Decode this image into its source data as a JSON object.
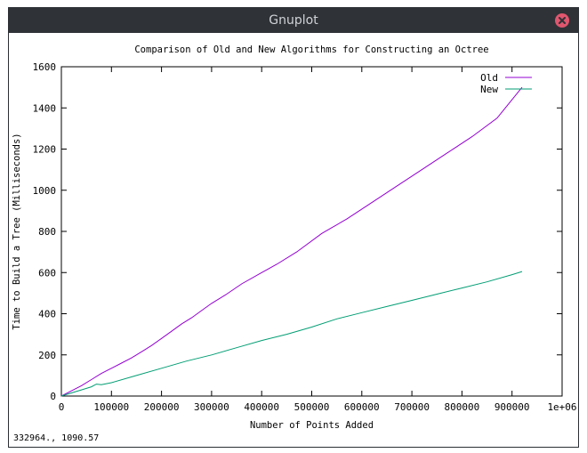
{
  "window": {
    "title": "Gnuplot",
    "close_icon": "close-icon"
  },
  "status": {
    "coords": "332964.,  1090.57"
  },
  "chart_data": {
    "type": "line",
    "title": "Comparison of Old and New Algorithms for Constructing an Octree",
    "xlabel": "Number of Points Added",
    "ylabel": "Time to Build a Tree (Milliseconds)",
    "xlim": [
      0,
      1000000
    ],
    "ylim": [
      0,
      1600
    ],
    "xticks": [
      0,
      100000,
      200000,
      300000,
      400000,
      500000,
      600000,
      700000,
      800000,
      900000,
      1000000
    ],
    "xtick_labels": [
      "0",
      "100000",
      "200000",
      "300000",
      "400000",
      "500000",
      "600000",
      "700000",
      "800000",
      "900000",
      "1e+06"
    ],
    "yticks": [
      0,
      200,
      400,
      600,
      800,
      1000,
      1200,
      1400,
      1600
    ],
    "ytick_labels": [
      "0",
      "200",
      "400",
      "600",
      "800",
      "1000",
      "1200",
      "1400",
      "1600"
    ],
    "grid": false,
    "legend_position": "top-right",
    "series": [
      {
        "name": "Old",
        "color": "#9400d3",
        "x": [
          0,
          20000,
          40000,
          60000,
          80000,
          100000,
          120000,
          140000,
          160000,
          180000,
          200000,
          220000,
          240000,
          260000,
          280000,
          300000,
          330000,
          360000,
          400000,
          430000,
          470000,
          520000,
          570000,
          620000,
          670000,
          720000,
          770000,
          820000,
          870000,
          920000
        ],
        "y": [
          0,
          25,
          50,
          80,
          110,
          135,
          160,
          185,
          215,
          245,
          280,
          315,
          350,
          380,
          415,
          450,
          495,
          545,
          600,
          640,
          700,
          790,
          860,
          940,
          1020,
          1100,
          1180,
          1260,
          1350,
          1500
        ]
      },
      {
        "name": "New",
        "color": "#009e73",
        "x": [
          0,
          20000,
          40000,
          60000,
          70000,
          80000,
          100000,
          150000,
          200000,
          250000,
          300000,
          350000,
          400000,
          450000,
          500000,
          550000,
          600000,
          650000,
          700000,
          750000,
          800000,
          850000,
          900000,
          920000
        ],
        "y": [
          0,
          15,
          30,
          45,
          58,
          55,
          65,
          100,
          135,
          170,
          200,
          235,
          270,
          300,
          335,
          375,
          405,
          435,
          465,
          495,
          525,
          555,
          590,
          605
        ]
      }
    ]
  }
}
